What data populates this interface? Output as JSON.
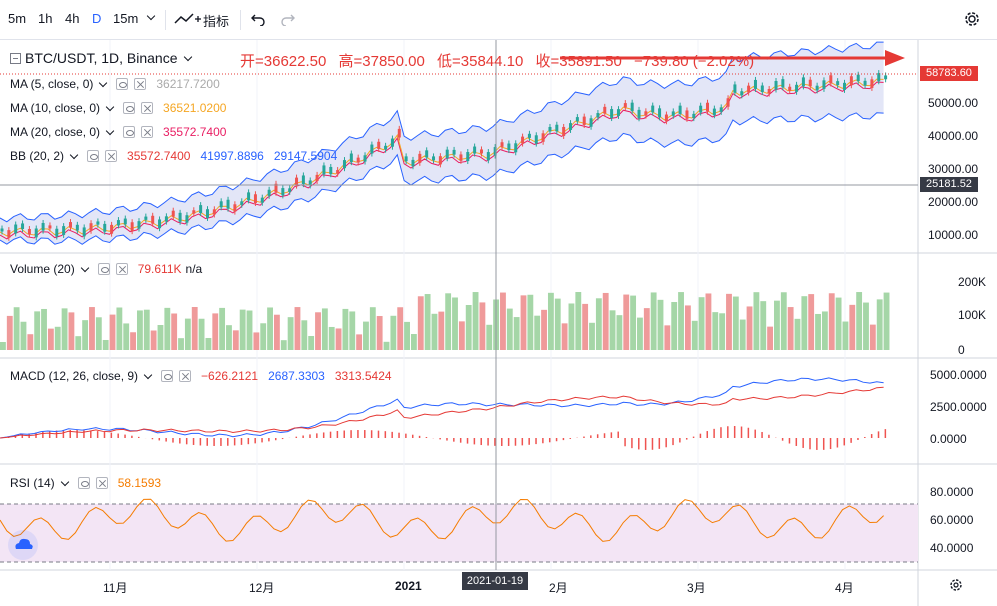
{
  "toolbar": {
    "intervals": [
      "5m",
      "1h",
      "4h",
      "D",
      "15m"
    ],
    "active_interval": "D",
    "indicators_label": "指标",
    "undo_icon": "undo-icon",
    "redo_icon": "redo-icon",
    "settings_icon": "gear-icon"
  },
  "header": {
    "symbol": "BTC/USDT, 1D, Binance",
    "open": "开=36622.50",
    "high": "高=37850.00",
    "low": "低=35844.10",
    "close": "收=35891.50",
    "change": "−739.80 (−2.02%)"
  },
  "legends": {
    "ma5": {
      "name": "MA (5, close, 0)",
      "value": "36217.7200",
      "color": "#aaaaaa"
    },
    "ma10": {
      "name": "MA (10, close, 0)",
      "value": "36521.0200",
      "color": "#f5a623"
    },
    "ma20": {
      "name": "MA (20, close, 0)",
      "value": "35572.7400",
      "color": "#e91e63"
    },
    "bb": {
      "name": "BB (20, 2)",
      "v1": "35572.7400",
      "v2": "41997.8896",
      "v3": "29147.5904",
      "c1": "#e53935",
      "c2": "#2962ff",
      "c3": "#2962ff"
    },
    "volume": {
      "name": "Volume (20)",
      "value": "79.611K",
      "extra": "n/a",
      "color": "#e53935"
    },
    "macd": {
      "name": "MACD (12, 26, close, 9)",
      "v1": "−626.2121",
      "v2": "2687.3303",
      "v3": "3313.5424",
      "c1": "#e53935",
      "c2": "#2962ff",
      "c3": "#e53935"
    },
    "rsi": {
      "name": "RSI (14)",
      "value": "58.1593",
      "color": "#f57c00"
    }
  },
  "price_axis": {
    "labels": [
      "50000.00",
      "40000.00",
      "30000.00",
      "20000.00",
      "10000.00"
    ],
    "last_price": "58783.60",
    "crosshair_price": "25181.52"
  },
  "volume_axis": [
    "200K",
    "100K",
    "0"
  ],
  "macd_axis": [
    "5000.0000",
    "2500.0000",
    "0.0000"
  ],
  "rsi_axis": [
    "80.0000",
    "60.0000",
    "40.0000"
  ],
  "time_axis": [
    "11月",
    "12月",
    "2021",
    "2月",
    "3月",
    "4月"
  ],
  "crosshair_date": "2021-01-19",
  "colors": {
    "up": "#26a69a",
    "down": "#ef5350",
    "vol_up": "#a5d6a7",
    "vol_down": "#ef9a9a",
    "grid": "#f0f3fa",
    "band_fill": "#e3e6f7",
    "rsi_band": "#f3e5f5"
  }
}
